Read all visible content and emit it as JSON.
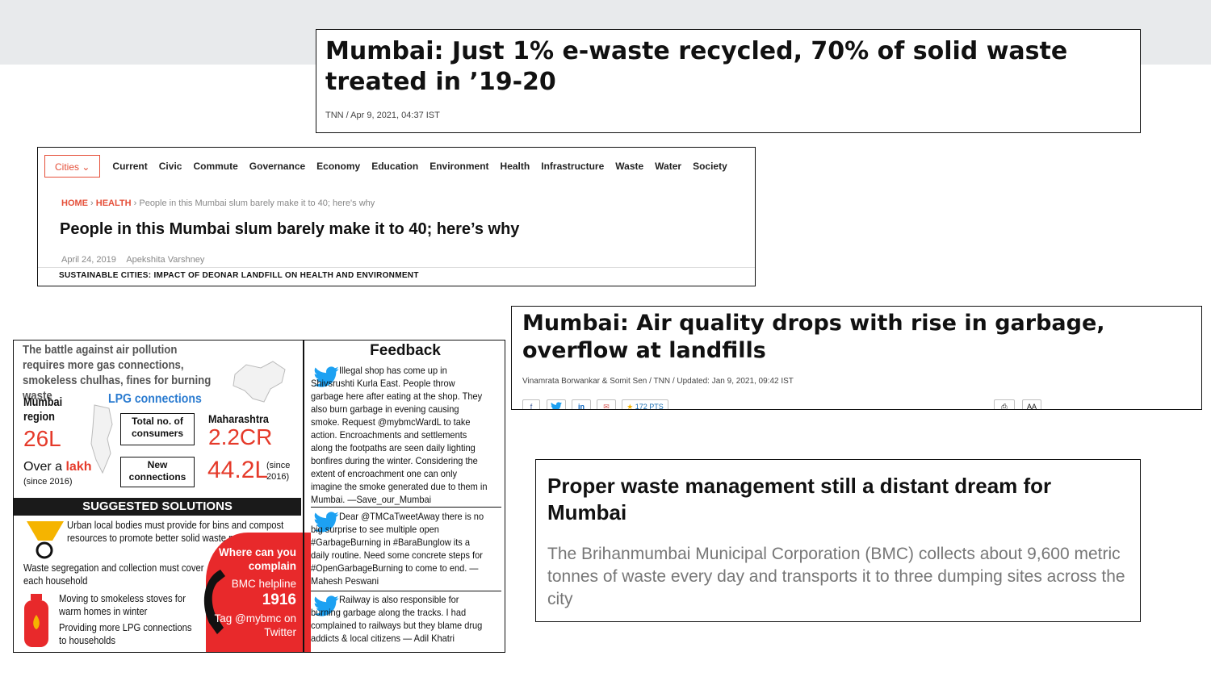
{
  "headline1": {
    "title": "Mumbai: Just 1% e-waste recycled, 70% of solid waste treated in ’19-20",
    "meta": "TNN / Apr 9, 2021, 04:37 IST"
  },
  "headline2": {
    "nav": {
      "cities": "Cities",
      "items": [
        "Current",
        "Civic",
        "Commute",
        "Governance",
        "Economy",
        "Education",
        "Environment",
        "Health",
        "Infrastructure",
        "Waste",
        "Water",
        "Society"
      ]
    },
    "breadcrumb": {
      "home": "HOME",
      "section": "HEALTH",
      "page": "People in this Mumbai slum barely make it to 40; here's why"
    },
    "title": "People in this Mumbai slum barely make it to 40; here’s why",
    "date": "April 24, 2019",
    "author": "Apekshita Varshney",
    "series": "SUSTAINABLE CITIES: IMPACT OF DEONAR LANDFILL ON HEALTH AND ENVIRONMENT"
  },
  "headline3": {
    "title": "Mumbai: Air quality drops with rise in garbage, overflow at landfills",
    "meta": "Vinamrata Borwankar & Somit Sen / TNN / Updated: Jan 9, 2021, 09:42 IST",
    "share": {
      "pts": "172 PTS",
      "fb": "f",
      "in": "in",
      "aa": "AA"
    }
  },
  "headline4": {
    "title": "Proper waste management still a distant dream for Mumbai",
    "summary": "The Brihanmumbai Municipal Corporation (BMC) collects about 9,600 metric tonnes of waste every day and transports it to three dumping sites across the city"
  },
  "clipping": {
    "infographic": {
      "title": "The battle against air pollution requires more gas connections, smokeless chulhas, fines for burning waste",
      "region": "Mumbai region",
      "region_value": "26L",
      "lpg": "LPG connections",
      "total_label": "Total no. of consumers",
      "maharashtra": "Maharashtra",
      "maharashtra_value": "2.2CR",
      "over_a": "Over a",
      "lakh": "lakh",
      "since1": "(since 2016)",
      "new_label": "New connections",
      "new_value": "44.2L",
      "since2": "(since 2016)",
      "solutions_header": "SUGGESTED SOLUTIONS",
      "solutions": [
        "Urban local bodies must provide for bins and compost resources to promote better solid waste management",
        "Waste segregation and collection must cover each household",
        "Moving to smokeless stoves for warm homes in winter",
        "Providing more LPG connections to households"
      ],
      "complain": "Where can you complain",
      "helpline": "BMC helpline",
      "helpline_no": "1916",
      "twitter": "Tag @mybmc on Twitter"
    },
    "feedback": {
      "title": "Feedback",
      "items": [
        "Illegal shop has come up in Shivsrushti Kurla East. People throw garbage here after eating at the shop. They also burn garbage in evening causing smoke. Request @mybmcWardL to take action. Encroachments and settlements along the footpaths are seen daily lighting bonfires during the winter. Considering the extent of encroachment one can only imagine the smoke generated due to them in Mumbai. —Save_our_Mumbai",
        "Dear @TMCaTweetAway there is no big surprise to see multiple open #GarbageBurning in #BaraBunglow its a daily routine. Need some concrete steps for #OpenGarbageBurning to come to end. — Mahesh Peswani",
        "Railway is also responsible for burning garbage along the tracks. I had complained to railways but they blame drug addicts & local citizens — Adil Khatri"
      ]
    }
  },
  "colors": {
    "accent_red": "#e53a2a",
    "twitter_blue": "#1da1f2"
  }
}
